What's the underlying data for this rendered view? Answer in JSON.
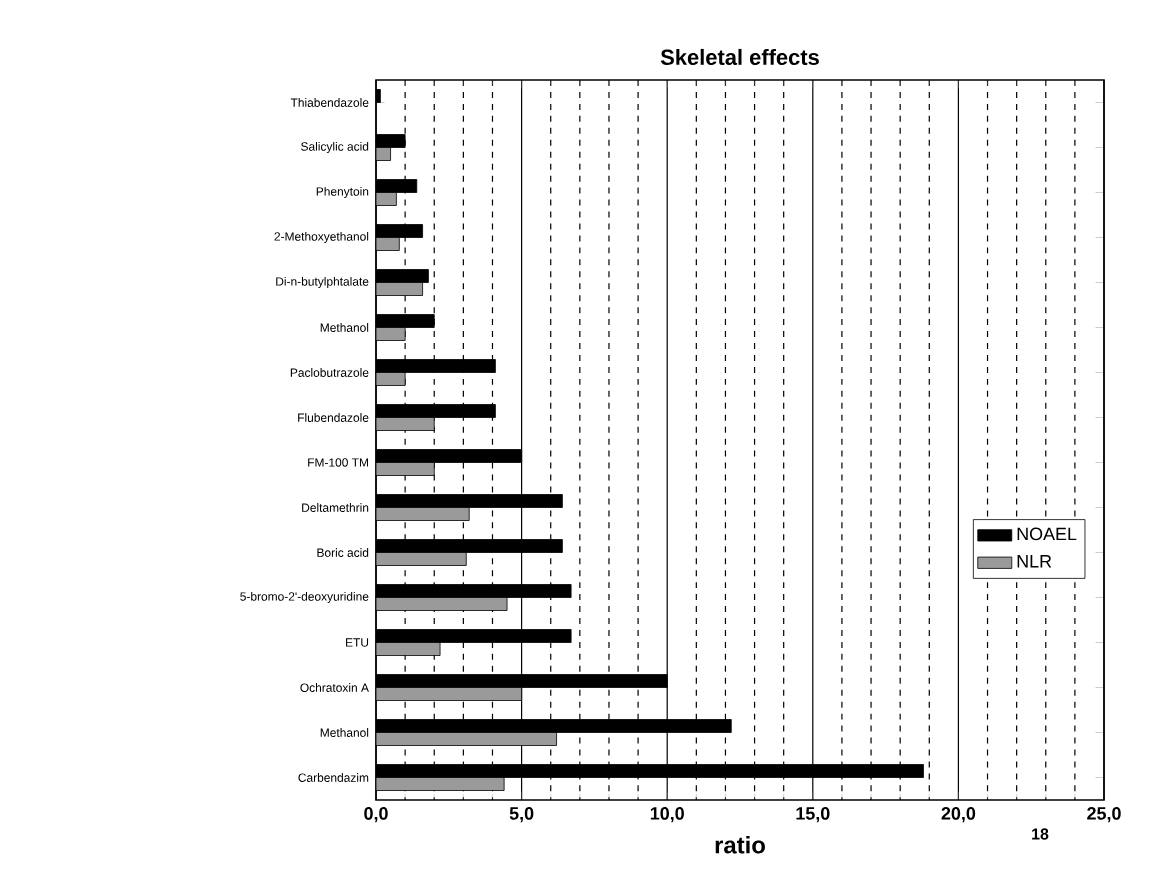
{
  "chart_data": {
    "type": "bar",
    "orientation": "horizontal",
    "title": "Skeletal effects",
    "xlabel": "ratio",
    "categories": [
      "Thiabendazole",
      "Salicylic acid",
      "Phenytoin",
      "2-Methoxyethanol",
      "Di-n-butylphtalate",
      "Methanol",
      "Paclobutrazole",
      "Flubendazole",
      "FM-100 TM",
      "Deltamethrin",
      "Boric acid",
      "5-bromo-2'-deoxyuridine",
      "ETU",
      "Ochratoxin A",
      "Methanol",
      "Carbendazim"
    ],
    "series": [
      {
        "name": "NOAEL",
        "color": "#000000",
        "values": [
          0.15,
          1.0,
          1.4,
          1.6,
          1.8,
          2.0,
          4.1,
          4.1,
          5.0,
          6.4,
          6.4,
          6.7,
          6.7,
          10.0,
          12.2,
          18.8
        ]
      },
      {
        "name": "NLR",
        "color": "#9a9a9a",
        "values": [
          null,
          0.5,
          0.7,
          0.8,
          1.6,
          1.0,
          1.0,
          2.0,
          2.0,
          3.2,
          3.1,
          4.5,
          2.2,
          5.0,
          6.2,
          4.4
        ]
      }
    ],
    "xlim": [
      0,
      25
    ],
    "xticks": [
      {
        "value": 0,
        "label": "0,0"
      },
      {
        "value": 5,
        "label": "5,0"
      },
      {
        "value": 10,
        "label": "10,0"
      },
      {
        "value": 15,
        "label": "15,0"
      },
      {
        "value": 20,
        "label": "20,0"
      },
      {
        "value": 25,
        "label": "25,0"
      }
    ],
    "grid": "x",
    "legend": "right",
    "annotations": [
      "18"
    ]
  }
}
